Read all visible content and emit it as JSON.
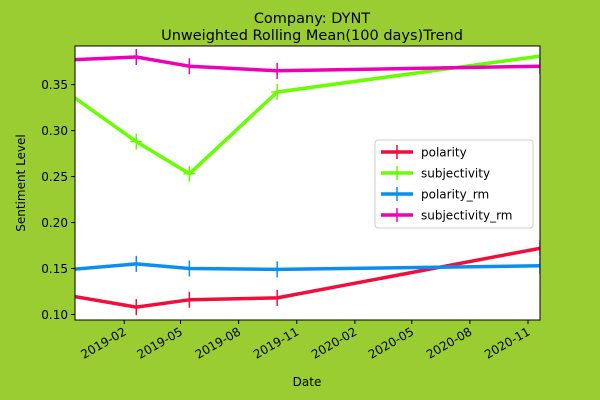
{
  "chart_data": {
    "type": "line",
    "title": "Company: DYNT",
    "subtitle": "Unweighted Rolling Mean(100 days)Trend",
    "xlabel": "Date",
    "ylabel": "Sentiment Level",
    "xlim": [
      "2018-11-15",
      "2020-11-20"
    ],
    "ylim": [
      0.094,
      0.392
    ],
    "x_ticks": [
      "2019-02",
      "2019-05",
      "2019-08",
      "2019-11",
      "2020-02",
      "2020-05",
      "2020-08",
      "2020-11"
    ],
    "y_ticks": [
      0.1,
      0.15,
      0.2,
      0.25,
      0.3,
      0.35
    ],
    "y_tick_labels": [
      "0.10",
      "0.15",
      "0.20",
      "0.25",
      "0.30",
      "0.35"
    ],
    "grid": false,
    "legend_position": "center-right",
    "series": [
      {
        "name": "polarity",
        "color": "#f20d3a",
        "x": [
          "2018-11-10",
          "2019-02-20",
          "2019-05-15",
          "2019-10-01",
          "2020-11-20"
        ],
        "y": [
          0.12,
          0.108,
          0.116,
          0.118,
          0.172
        ]
      },
      {
        "name": "subjectivity",
        "color": "#66ff00",
        "x": [
          "2018-11-10",
          "2019-02-20",
          "2019-05-15",
          "2019-10-01",
          "2020-11-20"
        ],
        "y": [
          0.338,
          0.288,
          0.253,
          0.342,
          0.381
        ]
      },
      {
        "name": "polarity_rm",
        "color": "#0a8ff0",
        "x": [
          "2018-11-10",
          "2019-02-20",
          "2019-05-15",
          "2019-10-01",
          "2020-11-20"
        ],
        "y": [
          0.149,
          0.155,
          0.15,
          0.149,
          0.153
        ]
      },
      {
        "name": "subjectivity_rm",
        "color": "#ee00bb",
        "x": [
          "2018-11-10",
          "2019-02-20",
          "2019-05-15",
          "2019-10-01",
          "2020-11-20"
        ],
        "y": [
          0.377,
          0.38,
          0.37,
          0.365,
          0.37
        ]
      }
    ]
  }
}
